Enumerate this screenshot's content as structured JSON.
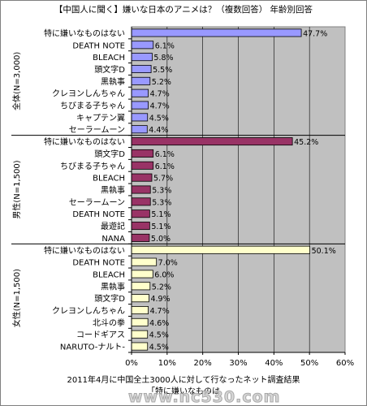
{
  "chart_data": {
    "type": "bar",
    "orientation": "horizontal",
    "title": "【中国人に聞く】嫌いな日本のアニメは？（複数回答） 年齢別回答",
    "xlim": [
      0,
      60
    ],
    "x_ticks": [
      "0%",
      "10%",
      "20%",
      "30%",
      "40%",
      "50%",
      "60%"
    ],
    "grid": true,
    "plot_background": "#c0c0c0",
    "groups": [
      {
        "name": "全体(N=3,000)",
        "color": "#9999ff",
        "categories": [
          "特に嫌いなものはない",
          "DEATH NOTE",
          "BLEACH",
          "頭文字D",
          "黒執事",
          "クレヨンしんちゃん",
          "ちびまる子ちゃん",
          "キャプテン翼",
          "セーラームーン"
        ],
        "values": [
          47.7,
          6.1,
          5.8,
          5.5,
          5.2,
          4.7,
          4.7,
          4.5,
          4.4
        ],
        "labels": [
          "47.7%",
          "6.1%",
          "5.8%",
          "5.5%",
          "5.2%",
          "4.7%",
          "4.7%",
          "4.5%",
          "4.4%"
        ]
      },
      {
        "name": "男性(N=1,500)",
        "color": "#993366",
        "categories": [
          "特に嫌いなものはない",
          "頭文字D",
          "ちびまる子ちゃん",
          "BLEACH",
          "黒執事",
          "セーラームーン",
          "DEATH NOTE",
          "最遊記",
          "NANA"
        ],
        "values": [
          45.2,
          6.1,
          6.1,
          5.7,
          5.3,
          5.3,
          5.1,
          5.1,
          5.0
        ],
        "labels": [
          "45.2%",
          "6.1%",
          "6.1%",
          "5.7%",
          "5.3%",
          "5.3%",
          "5.1%",
          "5.1%",
          "5.0%"
        ]
      },
      {
        "name": "女性(N=1,500)",
        "color": "#ffffcc",
        "categories": [
          "特に嫌いなものはない",
          "DEATH NOTE",
          "BLEACH",
          "黒執事",
          "頭文字D",
          "クレヨンしんちゃん",
          "北斗の拳",
          "コードギアス",
          "NARUTO-ナルト-"
        ],
        "values": [
          50.1,
          7.0,
          6.0,
          5.2,
          4.9,
          4.7,
          4.6,
          4.5,
          4.5
        ],
        "labels": [
          "50.1%",
          "7.0%",
          "6.0%",
          "5.2%",
          "4.9%",
          "4.7%",
          "4.6%",
          "4.5%",
          "4.5%"
        ]
      }
    ],
    "caption": [
      "2011年4月に中国全土3000人に対して行なったネット調査結果",
      "「特に嫌いなものは"
    ]
  },
  "watermark": "www.nc530.com"
}
